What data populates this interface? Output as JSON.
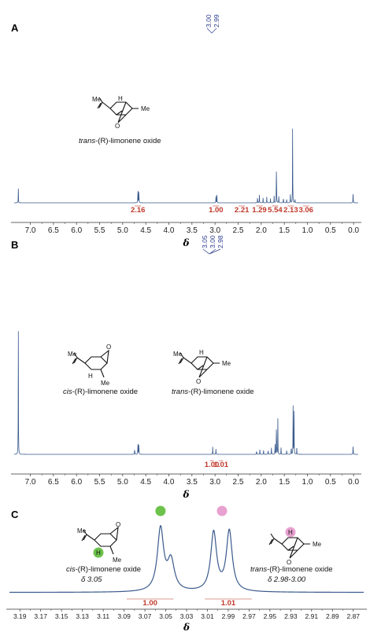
{
  "chart_data": [
    {
      "panel": "A",
      "type": "line",
      "xlabel": "δ",
      "xlim": [
        7.35,
        -0.1
      ],
      "ticks": [
        "7.0",
        "6.5",
        "6.0",
        "5.5",
        "5.0",
        "4.5",
        "4.0",
        "3.5",
        "3.0",
        "2.5",
        "2.0",
        "1.5",
        "1.0",
        "0.5",
        "0.0"
      ],
      "peak_labels": [
        "3.00",
        "2.99"
      ],
      "peaks": [
        {
          "x": 7.26,
          "h": 0.17
        },
        {
          "x": 4.67,
          "h": 0.22
        },
        {
          "x": 4.65,
          "h": 0.2
        },
        {
          "x": 2.98,
          "h": 0.09
        },
        {
          "x": 2.96,
          "h": 0.09
        },
        {
          "x": 2.08,
          "h": 0.08
        },
        {
          "x": 2.04,
          "h": 0.1
        },
        {
          "x": 1.96,
          "h": 0.06
        },
        {
          "x": 1.88,
          "h": 0.07
        },
        {
          "x": 1.8,
          "h": 0.05
        },
        {
          "x": 1.72,
          "h": 0.08
        },
        {
          "x": 1.67,
          "h": 0.6
        },
        {
          "x": 1.62,
          "h": 0.09
        },
        {
          "x": 1.52,
          "h": 0.08
        },
        {
          "x": 1.45,
          "h": 0.05
        },
        {
          "x": 1.37,
          "h": 0.12
        },
        {
          "x": 1.32,
          "h": 0.95
        },
        {
          "x": 1.27,
          "h": 0.06
        },
        {
          "x": 0.01,
          "h": 0.15
        }
      ],
      "integrals": [
        {
          "label": "2.16",
          "x": 4.67
        },
        {
          "label": "1.00",
          "x": 2.98
        },
        {
          "label": "2.21",
          "x": 2.42
        },
        {
          "label": "1.29",
          "x": 2.04
        },
        {
          "label": "5.54",
          "x": 1.7
        },
        {
          "label": "2.13",
          "x": 1.36
        },
        {
          "label": "3.06",
          "x": 1.03
        }
      ],
      "molecule": {
        "caption_prefix": "trans",
        "caption_rest": "-(R)-limonene oxide",
        "me_label": "Me",
        "h_label": "H",
        "o_label": "O"
      }
    },
    {
      "panel": "B",
      "type": "line",
      "xlabel": "δ",
      "xlim": [
        7.35,
        -0.1
      ],
      "ticks": [
        "7.0",
        "6.5",
        "6.0",
        "5.5",
        "5.0",
        "4.5",
        "4.0",
        "3.5",
        "3.0",
        "2.5",
        "2.0",
        "1.5",
        "1.0",
        "0.5",
        "0.0"
      ],
      "peak_labels": [
        "3.05",
        "3.00",
        "2.98"
      ],
      "peaks": [
        {
          "x": 7.26,
          "h": 1.0
        },
        {
          "x": 4.74,
          "h": 0.06
        },
        {
          "x": 4.67,
          "h": 0.13
        },
        {
          "x": 4.65,
          "h": 0.12
        },
        {
          "x": 3.05,
          "h": 0.06
        },
        {
          "x": 2.98,
          "h": 0.05
        },
        {
          "x": 2.1,
          "h": 0.04
        },
        {
          "x": 2.03,
          "h": 0.05
        },
        {
          "x": 1.95,
          "h": 0.04
        },
        {
          "x": 1.85,
          "h": 0.05
        },
        {
          "x": 1.78,
          "h": 0.07
        },
        {
          "x": 1.7,
          "h": 0.1
        },
        {
          "x": 1.67,
          "h": 0.32
        },
        {
          "x": 1.64,
          "h": 0.28
        },
        {
          "x": 1.57,
          "h": 0.06
        },
        {
          "x": 1.45,
          "h": 0.04
        },
        {
          "x": 1.35,
          "h": 0.08
        },
        {
          "x": 1.31,
          "h": 0.38
        },
        {
          "x": 1.29,
          "h": 0.4
        },
        {
          "x": 1.23,
          "h": 0.05
        },
        {
          "x": 0.01,
          "h": 0.09
        }
      ],
      "integrals": [
        {
          "label": "1.00",
          "x": 3.07
        },
        {
          "label": "1.01",
          "x": 2.87
        }
      ],
      "molecules": [
        {
          "caption_prefix": "cis",
          "caption_rest": "-(R)-limonene oxide",
          "me_label": "Me",
          "h_label": "H",
          "o_label": "O"
        },
        {
          "caption_prefix": "trans",
          "caption_rest": "-(R)-limonene oxide",
          "me_label": "Me",
          "h_label": "H",
          "o_label": "O"
        }
      ]
    },
    {
      "panel": "C",
      "type": "line",
      "xlabel": "δ",
      "xlim": [
        3.2,
        2.86
      ],
      "ticks": [
        "3.19",
        "3.17",
        "3.15",
        "3.13",
        "3.11",
        "3.09",
        "3.07",
        "3.05",
        "3.03",
        "3.01",
        "2.99",
        "2.97",
        "2.95",
        "2.93",
        "2.91",
        "2.89",
        "2.87"
      ],
      "peaks": [
        {
          "x": 3.055,
          "h": 0.88,
          "w": 0.0036
        },
        {
          "x": 3.045,
          "h": 0.42,
          "w": 0.004
        },
        {
          "x": 3.004,
          "h": 0.83,
          "w": 0.0034
        },
        {
          "x": 2.989,
          "h": 0.85,
          "w": 0.0034
        }
      ],
      "integrals": [
        {
          "label": "1.00",
          "x": 3.065
        },
        {
          "label": "1.01",
          "x": 2.99
        }
      ],
      "markers": [
        {
          "x": 3.055,
          "color": "#6cc24a"
        },
        {
          "x": 2.996,
          "color": "#e8a1d0"
        }
      ],
      "molecules": [
        {
          "caption_prefix": "cis",
          "caption_rest": "-(R)-limonene oxide",
          "shift": "δ 3.05",
          "me_label": "Me",
          "h_label": "H",
          "o_label": "O",
          "highlight": "#6cc24a"
        },
        {
          "caption_prefix": "trans",
          "caption_rest": "-(R)-limonene oxide",
          "shift": "δ 2.98-3.00",
          "me_label": "Me",
          "h_label": "H",
          "o_label": "O",
          "highlight": "#e8a1d0"
        }
      ]
    }
  ],
  "colors": {
    "spectrum": "#3a5a8c",
    "integral": "#c0392b",
    "peak_label": "#2e3f8f"
  }
}
